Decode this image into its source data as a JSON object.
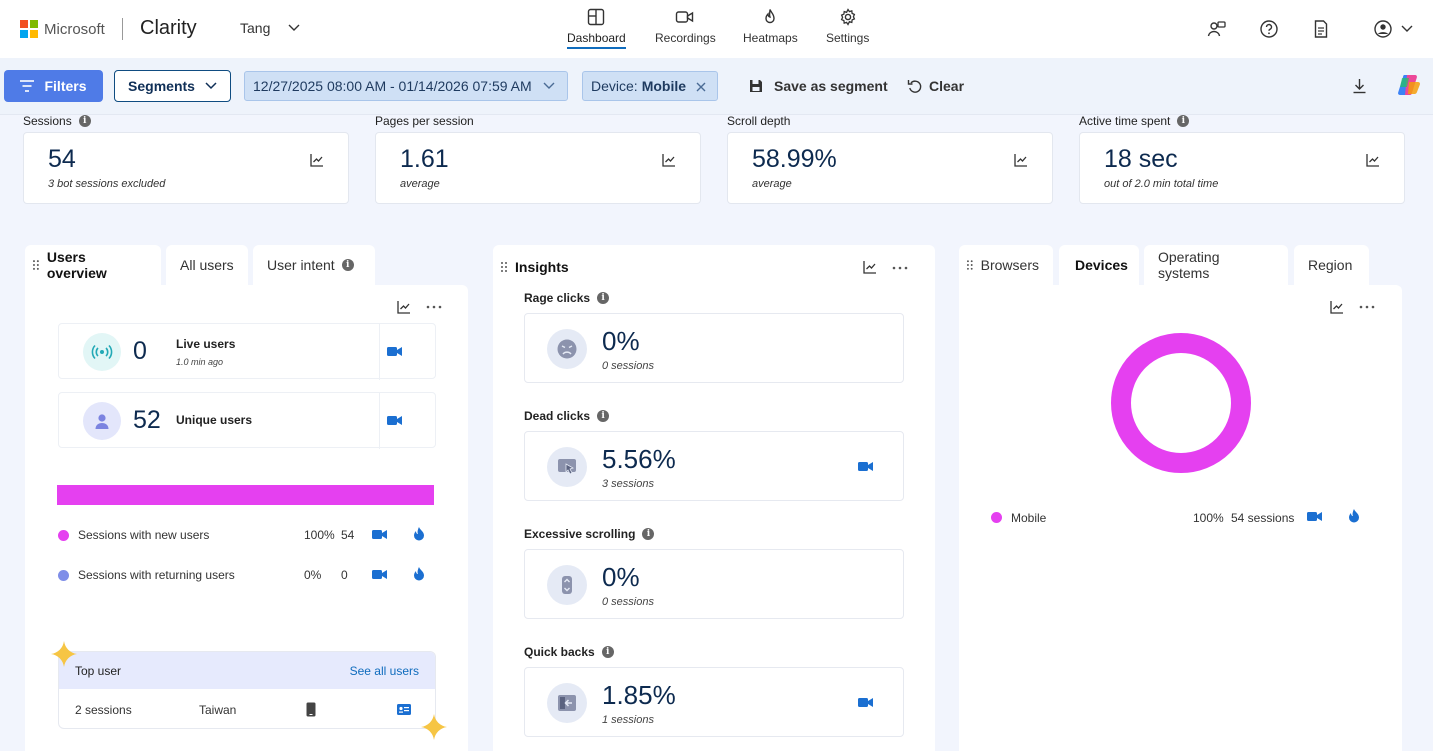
{
  "app": {
    "brand": "Microsoft",
    "product": "Clarity",
    "project": "Tang"
  },
  "nav": [
    {
      "label": "Dashboard",
      "icon": "dashboard-icon",
      "active": true
    },
    {
      "label": "Recordings",
      "icon": "video-icon",
      "active": false
    },
    {
      "label": "Heatmaps",
      "icon": "flame-icon",
      "active": false
    },
    {
      "label": "Settings",
      "icon": "gear-icon",
      "active": false
    }
  ],
  "filters": {
    "filters_label": "Filters",
    "segments_label": "Segments",
    "date_range": "12/27/2025 08:00 AM - 01/14/2026 07:59 AM",
    "device_prefix": "Device:",
    "device_value": "Mobile",
    "save_segment_label": "Save as segment",
    "clear_label": "Clear"
  },
  "metrics": [
    {
      "label": "Sessions",
      "info": true,
      "value": "54",
      "sub": "3 bot sessions excluded"
    },
    {
      "label": "Pages per session",
      "info": false,
      "value": "1.61",
      "sub": "average"
    },
    {
      "label": "Scroll depth",
      "info": false,
      "value": "58.99%",
      "sub": "average"
    },
    {
      "label": "Active time spent",
      "info": true,
      "value": "18 sec",
      "sub": "out of 2.0 min total time"
    }
  ],
  "users_panel": {
    "tabs": [
      "Users overview",
      "All users",
      "User intent"
    ],
    "live": {
      "count": "0",
      "title": "Live users",
      "sub": "1.0 min ago"
    },
    "unique": {
      "count": "52",
      "title": "Unique users"
    },
    "new_share": 1.0,
    "rows": [
      {
        "label": "Sessions with new users",
        "percent": "100%",
        "count": "54",
        "color": "#e540f0"
      },
      {
        "label": "Sessions with returning users",
        "percent": "0%",
        "count": "0",
        "color": "#7f8ee8"
      }
    ],
    "top_user": {
      "title": "Top user",
      "link": "See all users",
      "sessions": "2 sessions",
      "country": "Taiwan"
    }
  },
  "insights_panel": {
    "title": "Insights",
    "items": [
      {
        "label": "Rage clicks",
        "value": "0%",
        "sub": "0 sessions",
        "icon": "angry-face-icon",
        "camera": false
      },
      {
        "label": "Dead clicks",
        "value": "5.56%",
        "sub": "3 sessions",
        "icon": "dead-click-icon",
        "camera": true
      },
      {
        "label": "Excessive scrolling",
        "value": "0%",
        "sub": "0 sessions",
        "icon": "scroll-icon",
        "camera": false
      },
      {
        "label": "Quick backs",
        "value": "1.85%",
        "sub": "1 sessions",
        "icon": "quick-back-icon",
        "camera": true
      }
    ]
  },
  "devices_panel": {
    "tabs": [
      "Browsers",
      "Devices",
      "Operating systems",
      "Region"
    ],
    "active_tab": "Devices",
    "legend": [
      {
        "label": "Mobile",
        "percent": "100%",
        "sessions": "54 sessions",
        "color": "#e540f0"
      }
    ]
  },
  "chart_data": {
    "type": "pie",
    "title": "Devices",
    "categories": [
      "Mobile"
    ],
    "values": [
      100
    ]
  }
}
